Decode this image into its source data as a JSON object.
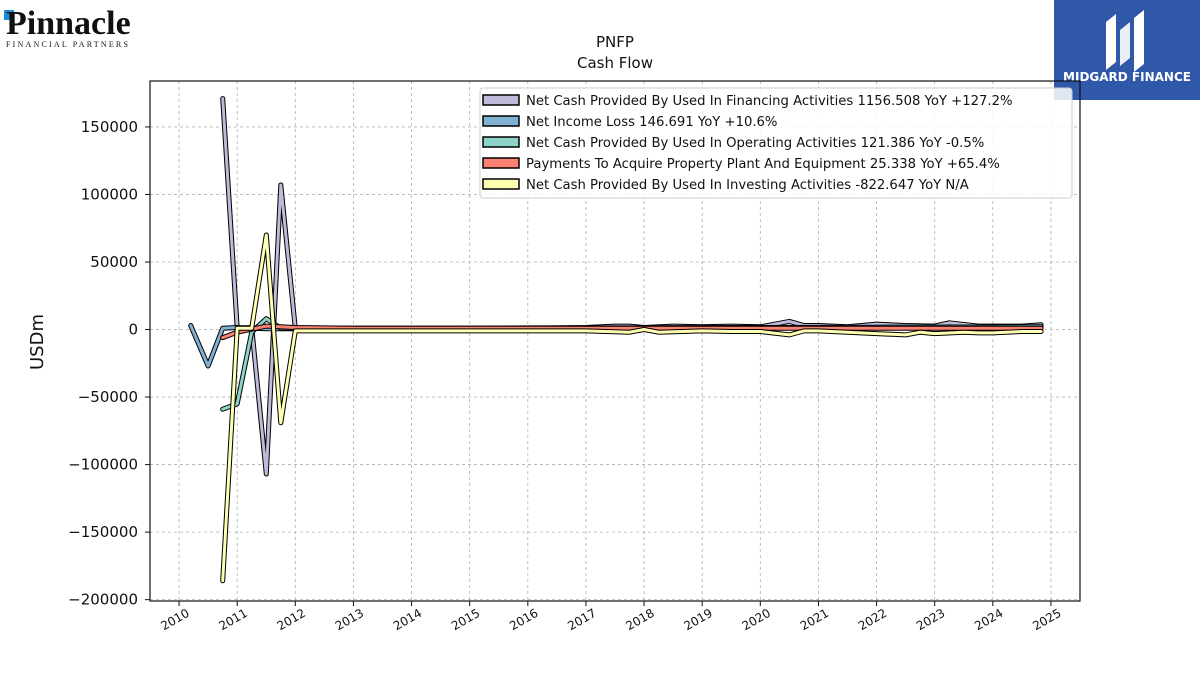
{
  "branding": {
    "left_logo": "Pinnacle",
    "left_logo_sub": "FINANCIAL PARTNERS",
    "right_logo": "MIDGARD FINANCE",
    "right_logo_bg": "#2f58a8"
  },
  "chart_data": {
    "type": "line",
    "title": "PNFP",
    "subtitle": "Cash Flow",
    "ylabel": "USDm",
    "xlabel": "",
    "xlim": [
      2009.5,
      2025.5
    ],
    "ylim": [
      -201000,
      184000
    ],
    "x_ticks": [
      "2010",
      "2011",
      "2012",
      "2013",
      "2014",
      "2015",
      "2016",
      "2017",
      "2018",
      "2019",
      "2020",
      "2021",
      "2022",
      "2023",
      "2024",
      "2025"
    ],
    "y_ticks": [
      150000,
      100000,
      50000,
      0,
      -50000,
      -100000,
      -150000,
      -200000
    ],
    "y_tick_labels": [
      "150000",
      "100000",
      "50000",
      "0",
      "−50000",
      "−100000",
      "−150000",
      "−200000"
    ],
    "grid": true,
    "legend_position": "top-right",
    "series": [
      {
        "name": "Net Cash Provided By Used In Financing Activities  1156.508 YoY +127.2%",
        "color": "#bebada",
        "points": [
          [
            2010.75,
            171000
          ],
          [
            2011.0,
            1000
          ],
          [
            2011.25,
            1500
          ],
          [
            2011.5,
            -107000
          ],
          [
            2011.75,
            107000
          ],
          [
            2012.0,
            1000
          ],
          [
            2013.0,
            1000
          ],
          [
            2014.0,
            1000
          ],
          [
            2015.0,
            1000
          ],
          [
            2016.0,
            1000
          ],
          [
            2017.0,
            1500
          ],
          [
            2017.5,
            2500
          ],
          [
            2017.75,
            2500
          ],
          [
            2018.0,
            1500
          ],
          [
            2018.5,
            2500
          ],
          [
            2019.0,
            2000
          ],
          [
            2019.5,
            2500
          ],
          [
            2020.0,
            2000
          ],
          [
            2020.5,
            6000
          ],
          [
            2020.75,
            3000
          ],
          [
            2021.0,
            3000
          ],
          [
            2021.5,
            2000
          ],
          [
            2022.0,
            4000
          ],
          [
            2022.5,
            3000
          ],
          [
            2023.0,
            2500
          ],
          [
            2023.25,
            5000
          ],
          [
            2023.75,
            2500
          ],
          [
            2024.0,
            2500
          ],
          [
            2024.5,
            2500
          ],
          [
            2024.83,
            3500
          ]
        ]
      },
      {
        "name": "Net Income Loss  146.691 YoY +10.6%",
        "color": "#80b1d3",
        "points": [
          [
            2010.2,
            3000
          ],
          [
            2010.5,
            -27000
          ],
          [
            2010.75,
            1000
          ],
          [
            2011.0,
            1500
          ],
          [
            2011.5,
            500
          ],
          [
            2012.0,
            500
          ],
          [
            2013.0,
            600
          ],
          [
            2014.0,
            700
          ],
          [
            2015.0,
            800
          ],
          [
            2016.0,
            900
          ],
          [
            2017.0,
            1000
          ],
          [
            2018.0,
            1100
          ],
          [
            2019.0,
            1200
          ],
          [
            2020.0,
            1300
          ],
          [
            2021.0,
            1400
          ],
          [
            2022.0,
            1500
          ],
          [
            2023.0,
            1600
          ],
          [
            2024.0,
            1700
          ],
          [
            2024.83,
            1900
          ]
        ]
      },
      {
        "name": "Net Cash Provided By Used In Operating Activities  121.386 YoY -0.5%",
        "color": "#8dd3c7",
        "points": [
          [
            2010.75,
            -59000
          ],
          [
            2011.0,
            -55000
          ],
          [
            2011.25,
            -2000
          ],
          [
            2011.5,
            8000
          ],
          [
            2011.75,
            1000
          ],
          [
            2012.0,
            1000
          ],
          [
            2013.0,
            1000
          ],
          [
            2014.0,
            1000
          ],
          [
            2015.0,
            1000
          ],
          [
            2016.0,
            1200
          ],
          [
            2017.0,
            1200
          ],
          [
            2018.0,
            1300
          ],
          [
            2019.0,
            1400
          ],
          [
            2020.0,
            1500
          ],
          [
            2021.0,
            1600
          ],
          [
            2022.0,
            1700
          ],
          [
            2023.0,
            1800
          ],
          [
            2024.0,
            1900
          ],
          [
            2024.83,
            2000
          ]
        ]
      },
      {
        "name": "Payments To Acquire Property Plant And Equipment  25.338 YoY +65.4%",
        "color": "#fb8072",
        "points": [
          [
            2010.75,
            -6000
          ],
          [
            2011.0,
            -2000
          ],
          [
            2011.5,
            2500
          ],
          [
            2012.0,
            1500
          ],
          [
            2013.0,
            1000
          ],
          [
            2014.0,
            1000
          ],
          [
            2015.0,
            1000
          ],
          [
            2016.0,
            1000
          ],
          [
            2017.0,
            1000
          ],
          [
            2018.0,
            1000
          ],
          [
            2019.0,
            1000
          ],
          [
            2020.0,
            1000
          ],
          [
            2021.0,
            1000
          ],
          [
            2022.0,
            1000
          ],
          [
            2023.0,
            1000
          ],
          [
            2024.0,
            1000
          ],
          [
            2024.83,
            1000
          ]
        ]
      },
      {
        "name": "Net Cash Provided By Used In Investing Activities  -822.647 YoY N/A",
        "color": "#ffffb3",
        "points": [
          [
            2010.75,
            -186000
          ],
          [
            2011.0,
            1000
          ],
          [
            2011.25,
            1000
          ],
          [
            2011.5,
            70000
          ],
          [
            2011.75,
            -69000
          ],
          [
            2012.0,
            -1000
          ],
          [
            2013.0,
            -1000
          ],
          [
            2014.0,
            -1000
          ],
          [
            2015.0,
            -1000
          ],
          [
            2016.0,
            -1000
          ],
          [
            2017.0,
            -1000
          ],
          [
            2017.75,
            -2000
          ],
          [
            2018.0,
            0
          ],
          [
            2018.25,
            -2000
          ],
          [
            2019.0,
            -1000
          ],
          [
            2019.5,
            -1500
          ],
          [
            2020.0,
            -1500
          ],
          [
            2020.5,
            -4000
          ],
          [
            2020.75,
            -1000
          ],
          [
            2021.0,
            -1000
          ],
          [
            2021.5,
            -2000
          ],
          [
            2022.0,
            -3000
          ],
          [
            2022.5,
            -4000
          ],
          [
            2022.75,
            -2000
          ],
          [
            2023.0,
            -3000
          ],
          [
            2023.5,
            -2000
          ],
          [
            2023.75,
            -2500
          ],
          [
            2024.0,
            -2500
          ],
          [
            2024.5,
            -1500
          ],
          [
            2024.83,
            -1500
          ]
        ]
      }
    ]
  }
}
